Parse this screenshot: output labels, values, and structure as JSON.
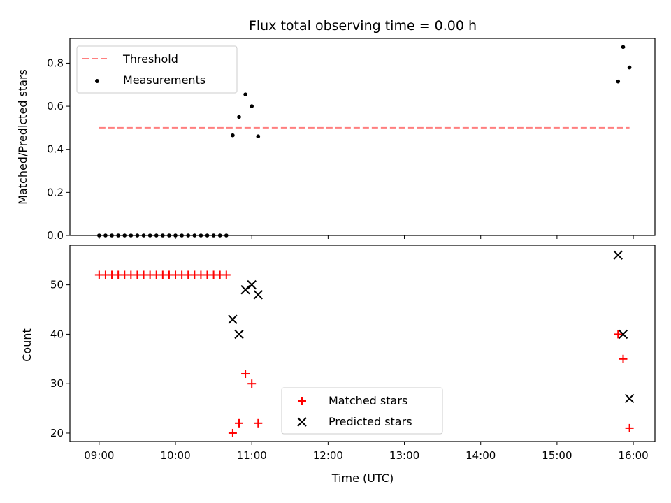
{
  "chart_data": [
    {
      "type": "scatter",
      "title": "Flux total observing time = 0.00 h",
      "xlabel": "",
      "ylabel": "Matched/Predicted stars",
      "xlim": [
        "08:37",
        "16:17"
      ],
      "ylim": [
        0,
        0.915
      ],
      "yticks": [
        "0.0",
        "0.2",
        "0.4",
        "0.6",
        "0.8"
      ],
      "grid": false,
      "legend_position": "top-left",
      "threshold": {
        "name": "Threshold",
        "y": 0.5,
        "x_range": [
          "09:00",
          "15:57"
        ],
        "color": "#ff7f7f",
        "style": "dashed"
      },
      "series": [
        {
          "name": "Measurements",
          "color": "#000000",
          "marker": "dot",
          "x": [
            "09:00",
            "09:05",
            "09:10",
            "09:15",
            "09:20",
            "09:25",
            "09:30",
            "09:35",
            "09:40",
            "09:45",
            "09:50",
            "09:55",
            "10:00",
            "10:05",
            "10:10",
            "10:15",
            "10:20",
            "10:25",
            "10:30",
            "10:35",
            "10:40",
            "10:45",
            "10:50",
            "10:55",
            "11:00",
            "11:05",
            "15:48",
            "15:52",
            "15:57"
          ],
          "y": [
            0,
            0,
            0,
            0,
            0,
            0,
            0,
            0,
            0,
            0,
            0,
            0,
            0,
            0,
            0,
            0,
            0,
            0,
            0,
            0,
            0,
            0.465,
            0.55,
            0.655,
            0.6,
            0.46,
            0.715,
            0.875,
            0.78
          ]
        }
      ]
    },
    {
      "type": "scatter",
      "title": "",
      "xlabel": "Time (UTC)",
      "ylabel": "Count",
      "xlim": [
        "08:37",
        "16:17"
      ],
      "ylim": [
        18.3,
        58.0
      ],
      "xticks": [
        "09:00",
        "10:00",
        "11:00",
        "12:00",
        "13:00",
        "14:00",
        "15:00",
        "16:00"
      ],
      "yticks": [
        "20",
        "30",
        "40",
        "50"
      ],
      "grid": false,
      "legend_position": "bottom-center",
      "series": [
        {
          "name": "Matched stars",
          "color": "#ff0000",
          "marker": "plus",
          "x": [
            "09:00",
            "09:05",
            "09:10",
            "09:15",
            "09:20",
            "09:25",
            "09:30",
            "09:35",
            "09:40",
            "09:45",
            "09:50",
            "09:55",
            "10:00",
            "10:05",
            "10:10",
            "10:15",
            "10:20",
            "10:25",
            "10:30",
            "10:35",
            "10:40",
            "10:45",
            "10:50",
            "10:55",
            "11:00",
            "11:05",
            "15:48",
            "15:52",
            "15:57"
          ],
          "y": [
            52,
            52,
            52,
            52,
            52,
            52,
            52,
            52,
            52,
            52,
            52,
            52,
            52,
            52,
            52,
            52,
            52,
            52,
            52,
            52,
            52,
            20,
            22,
            32,
            30,
            22,
            40,
            35,
            21
          ]
        },
        {
          "name": "Predicted stars",
          "color": "#000000",
          "marker": "x",
          "x": [
            "10:45",
            "10:50",
            "10:55",
            "11:00",
            "11:05",
            "15:48",
            "15:52",
            "15:57"
          ],
          "y": [
            43,
            40,
            49,
            50,
            48,
            56,
            40,
            27
          ]
        }
      ]
    }
  ]
}
